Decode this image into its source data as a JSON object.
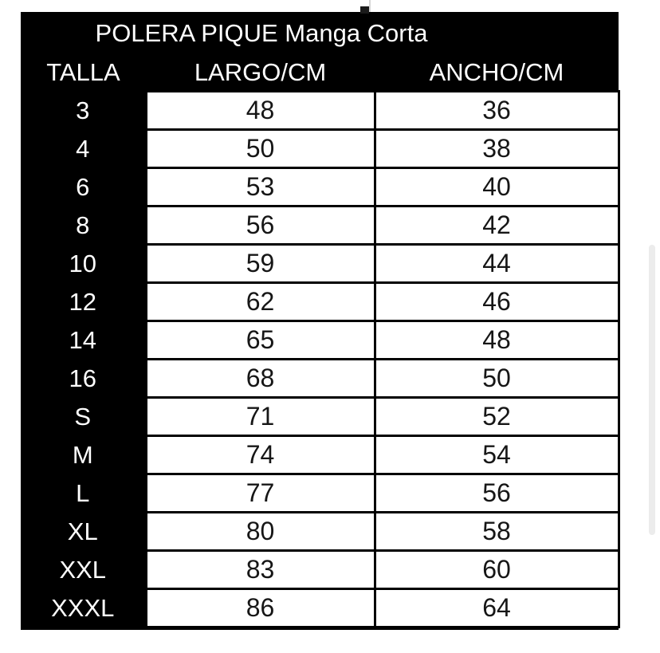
{
  "chart_data": {
    "type": "table",
    "title": "POLERA PIQUE Manga Corta",
    "columns": [
      "TALLA",
      "LARGO/CM",
      "ANCHO/CM"
    ],
    "rows": [
      [
        "3",
        "48",
        "36"
      ],
      [
        "4",
        "50",
        "38"
      ],
      [
        "6",
        "53",
        "40"
      ],
      [
        "8",
        "56",
        "42"
      ],
      [
        "10",
        "59",
        "44"
      ],
      [
        "12",
        "62",
        "46"
      ],
      [
        "14",
        "65",
        "48"
      ],
      [
        "16",
        "68",
        "50"
      ],
      [
        "S",
        "71",
        "52"
      ],
      [
        "M",
        "74",
        "54"
      ],
      [
        "L",
        "77",
        "56"
      ],
      [
        "XL",
        "80",
        "58"
      ],
      [
        "XXL",
        "83",
        "60"
      ],
      [
        "XXXL",
        "86",
        "64"
      ]
    ]
  },
  "colors": {
    "sheet_bg": "#000000",
    "cell_bg": "#ffffff",
    "text_on_dark": "#ffffff",
    "text_on_light": "#161616",
    "page_bg": "#ffffff",
    "scrollbar_thumb": "#ececec"
  }
}
